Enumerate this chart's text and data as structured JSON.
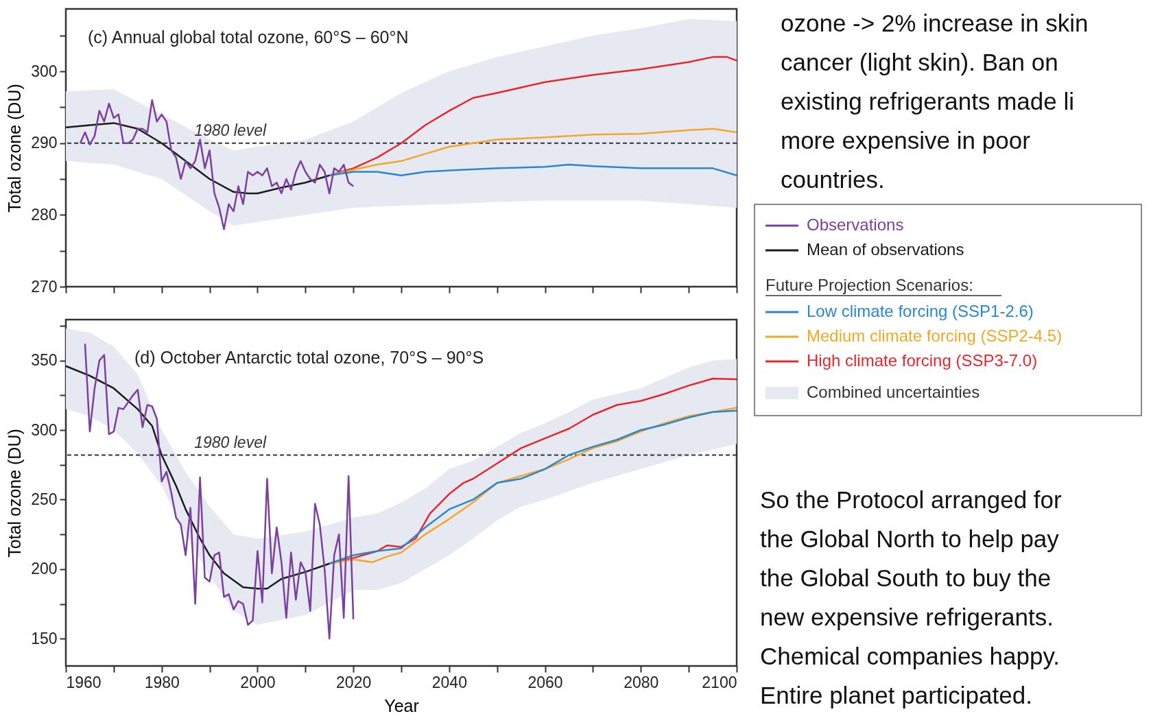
{
  "chart_data": [
    {
      "type": "line",
      "title": "(c) Annual global total ozone, 60°S – 60°N",
      "ylabel": "Total ozone (DU)",
      "xlim": [
        1960,
        2100
      ],
      "ylim": [
        270,
        308.7
      ],
      "xticks": [
        {
          "value": 1960,
          "label": null
        },
        {
          "value": 1970,
          "label": null
        },
        {
          "value": 1980,
          "label": null
        },
        {
          "value": 1990,
          "label": null
        },
        {
          "value": 2000,
          "label": null
        },
        {
          "value": 2010,
          "label": null
        },
        {
          "value": 2020,
          "label": null
        },
        {
          "value": 2030,
          "label": null
        },
        {
          "value": 2040,
          "label": null
        },
        {
          "value": 2050,
          "label": null
        },
        {
          "value": 2060,
          "label": null
        },
        {
          "value": 2070,
          "label": null
        },
        {
          "value": 2080,
          "label": null
        },
        {
          "value": 2090,
          "label": null
        },
        {
          "value": 2100,
          "label": null
        }
      ],
      "yticks": [
        270,
        {
          "value": 275,
          "label": null
        },
        280,
        {
          "value": 285,
          "label": null
        },
        290,
        {
          "value": 295,
          "label": null
        },
        300,
        {
          "value": 305,
          "label": null
        }
      ],
      "tick_labels": "y",
      "legend": "right",
      "legend_title": "Future Projection Scenarios:",
      "grid": false,
      "ref_lines": [
        {
          "axis": "y",
          "value": 290,
          "label": "1980 level",
          "line_style": "dashed",
          "color": "#333333"
        }
      ],
      "series": [
        {
          "name": "Observations",
          "type": "line",
          "color": "#7b3fa0",
          "x": [
            1963,
            1964,
            1965,
            1966,
            1967,
            1968,
            1969,
            1970,
            1971,
            1972,
            1973,
            1974,
            1975,
            1976,
            1977,
            1978,
            1979,
            1980,
            1981,
            1982,
            1983,
            1984,
            1985,
            1986,
            1987,
            1988,
            1989,
            1990,
            1991,
            1992,
            1993,
            1994,
            1995,
            1996,
            1997,
            1998,
            1999,
            2000,
            2001,
            2002,
            2003,
            2004,
            2005,
            2006,
            2007,
            2008,
            2009,
            2010,
            2011,
            2012,
            2013,
            2014,
            2015,
            2016,
            2017,
            2018,
            2019,
            2020
          ],
          "values": [
            290,
            291.5,
            289.8,
            291,
            294.5,
            293,
            295.5,
            293.5,
            294,
            290,
            290,
            290.5,
            292,
            292,
            291.5,
            296,
            293,
            294,
            293,
            289,
            288,
            285,
            287.5,
            286.5,
            287.5,
            290.5,
            286.5,
            289,
            283,
            281,
            278,
            281.5,
            280.5,
            284,
            281.5,
            286,
            285.5,
            286,
            285.5,
            286.5,
            284,
            284.5,
            283,
            285,
            283.5,
            286,
            287.5,
            286,
            285,
            284.5,
            287,
            286,
            283,
            286.5,
            286,
            287,
            284.5,
            284
          ]
        },
        {
          "name": "Mean of observations",
          "type": "line",
          "color": "#1a1a1a",
          "x": [
            1960,
            1965,
            1970,
            1975,
            1980,
            1985,
            1990,
            1995,
            1998,
            2000,
            2005,
            2010,
            2015
          ],
          "values": [
            292.2,
            292.5,
            292.8,
            292,
            290,
            287.5,
            285,
            283.2,
            283,
            283,
            283.8,
            284.5,
            285.5
          ]
        },
        {
          "name": "Low climate forcing (SSP1-2.6)",
          "type": "line",
          "color": "#2a86d1",
          "x": [
            2015,
            2020,
            2025,
            2030,
            2035,
            2040,
            2050,
            2060,
            2065,
            2070,
            2080,
            2090,
            2095,
            2100
          ],
          "values": [
            285.5,
            286,
            286,
            285.5,
            286,
            286.2,
            286.5,
            286.7,
            287,
            286.8,
            286.5,
            286.5,
            286.5,
            285.5
          ]
        },
        {
          "name": "Medium climate forcing (SSP2-4.5)",
          "type": "line",
          "color": "#f5a623",
          "x": [
            2015,
            2020,
            2025,
            2030,
            2035,
            2040,
            2045,
            2050,
            2060,
            2070,
            2080,
            2090,
            2095,
            2100
          ],
          "values": [
            285.5,
            286.3,
            287,
            287.5,
            288.5,
            289.5,
            290,
            290.5,
            290.8,
            291.2,
            291.3,
            291.8,
            292,
            291.5
          ]
        },
        {
          "name": "High climate forcing (SSP3-7.0)",
          "type": "line",
          "color": "#e8262b",
          "x": [
            2015,
            2020,
            2025,
            2030,
            2035,
            2040,
            2045,
            2050,
            2060,
            2070,
            2080,
            2090,
            2095,
            2098,
            2100
          ],
          "values": [
            285.5,
            286.5,
            288,
            290,
            292.5,
            294.5,
            296.3,
            297,
            298.5,
            299.5,
            300.3,
            301.3,
            302,
            302,
            301.5
          ]
        },
        {
          "name": "Combined uncertainties",
          "type": "area",
          "color": "#e6e9f1",
          "x": [
            1960,
            1970,
            1980,
            1990,
            1995,
            2000,
            2010,
            2020,
            2030,
            2040,
            2050,
            2060,
            2070,
            2080,
            2090,
            2100
          ],
          "values": [
            null,
            null,
            null,
            null,
            null,
            null,
            null,
            null,
            null,
            null,
            null,
            null,
            null,
            null,
            null,
            null
          ],
          "lower": [
            287.5,
            287,
            285,
            280.5,
            278.5,
            279,
            280,
            281,
            281.3,
            281.5,
            281.8,
            282,
            282,
            282,
            281.5,
            281
          ],
          "upper": [
            297.2,
            297.5,
            294,
            290.5,
            289,
            289.5,
            290.5,
            293,
            297,
            300,
            302,
            303.5,
            305,
            306,
            307.3,
            307
          ]
        }
      ]
    },
    {
      "type": "line",
      "title": "(d) October Antarctic total ozone, 70°S – 90°S",
      "xlabel": "Year",
      "ylabel": "Total ozone (DU)",
      "xlim": [
        1960,
        2100
      ],
      "ylim": [
        130.4,
        379.4
      ],
      "xticks": [
        1960,
        {
          "value": 1970,
          "label": null
        },
        1980,
        {
          "value": 1990,
          "label": null
        },
        2000,
        {
          "value": 2010,
          "label": null
        },
        2020,
        {
          "value": 2030,
          "label": null
        },
        2040,
        {
          "value": 2050,
          "label": null
        },
        2060,
        {
          "value": 2070,
          "label": null
        },
        2080,
        {
          "value": 2090,
          "label": null
        },
        2100
      ],
      "yticks": [
        150,
        {
          "value": 175,
          "label": null
        },
        200,
        {
          "value": 225,
          "label": null
        },
        250,
        {
          "value": 275,
          "label": null
        },
        300,
        {
          "value": 325,
          "label": null
        },
        350,
        {
          "value": 375,
          "label": null
        }
      ],
      "grid": false,
      "ref_lines": [
        {
          "axis": "y",
          "value": 282,
          "label": "1980 level",
          "line_style": "dashed",
          "color": "#333333"
        }
      ],
      "series": [
        {
          "type": "line",
          "color": "#7b3fa0",
          "x": [
            1964,
            1965,
            1966,
            1967,
            1968,
            1969,
            1970,
            1971,
            1972,
            1973,
            1974,
            1975,
            1976,
            1977,
            1978,
            1979,
            1980,
            1981,
            1982,
            1983,
            1984,
            1985,
            1986,
            1987,
            1988,
            1989,
            1990,
            1991,
            1992,
            1993,
            1994,
            1995,
            1996,
            1997,
            1998,
            1999,
            2000,
            2001,
            2002,
            2003,
            2004,
            2005,
            2006,
            2007,
            2008,
            2009,
            2010,
            2011,
            2012,
            2013,
            2014,
            2015,
            2016,
            2017,
            2018,
            2019,
            2020
          ],
          "values": [
            362,
            299,
            330,
            350,
            354,
            297,
            299,
            316,
            315,
            320,
            325,
            329,
            302,
            318,
            317,
            308,
            263,
            270,
            255,
            237,
            232,
            210,
            244,
            175,
            266,
            194,
            191,
            210,
            212,
            180,
            182,
            171,
            177,
            175,
            160,
            163,
            213,
            176,
            265,
            197,
            230,
            205,
            165,
            212,
            178,
            205,
            198,
            170,
            247,
            232,
            200,
            150,
            210,
            225,
            165,
            267,
            164
          ]
        },
        {
          "type": "line",
          "color": "#1a1a1a",
          "x": [
            1960,
            1965,
            1970,
            1975,
            1978,
            1980,
            1983,
            1985,
            1988,
            1990,
            1993,
            1997,
            2000,
            2002,
            2005,
            2010,
            2015
          ],
          "values": [
            346,
            339,
            330,
            315,
            303,
            282,
            260,
            243,
            222,
            210,
            197,
            187,
            186,
            186,
            193,
            198,
            204
          ]
        },
        {
          "type": "line",
          "color": "#2a86d1",
          "x": [
            2015,
            2020,
            2025,
            2030,
            2035,
            2040,
            2045,
            2050,
            2055,
            2060,
            2065,
            2070,
            2075,
            2080,
            2085,
            2090,
            2095,
            2100
          ],
          "values": [
            204,
            210,
            213,
            215,
            230,
            243,
            250,
            262,
            265,
            272,
            282,
            288,
            293,
            300,
            304,
            309,
            313,
            314
          ]
        },
        {
          "type": "line",
          "color": "#f5a623",
          "x": [
            2015,
            2020,
            2024,
            2027,
            2030,
            2035,
            2040,
            2045,
            2050,
            2055,
            2060,
            2065,
            2070,
            2075,
            2080,
            2085,
            2090,
            2095,
            2100
          ],
          "values": [
            204,
            207,
            205,
            209,
            212,
            225,
            236,
            248,
            262,
            267,
            272,
            279,
            287,
            292,
            299,
            305,
            310,
            313,
            316
          ]
        },
        {
          "type": "line",
          "color": "#e8262b",
          "x": [
            2015,
            2020,
            2025,
            2027,
            2030,
            2033,
            2036,
            2040,
            2043,
            2045,
            2050,
            2055,
            2060,
            2065,
            2070,
            2075,
            2080,
            2085,
            2090,
            2095,
            2100
          ],
          "values": [
            204,
            208,
            213,
            217,
            216,
            222,
            240,
            254,
            262,
            265,
            276,
            287,
            294,
            301,
            311,
            318,
            321,
            326,
            332,
            337,
            336.5
          ]
        },
        {
          "type": "area",
          "color": "#e6e9f1",
          "x": [
            1960,
            1965,
            1970,
            1975,
            1980,
            1985,
            1990,
            1995,
            2000,
            2010,
            2020,
            2025,
            2030,
            2035,
            2040,
            2045,
            2050,
            2055,
            2060,
            2065,
            2070,
            2080,
            2090,
            2095,
            2100
          ],
          "values": [
            null,
            null,
            null,
            null,
            null,
            null,
            null,
            null,
            null,
            null,
            null,
            null,
            null,
            null,
            null,
            null,
            null,
            null,
            null,
            null,
            null,
            null,
            null,
            null,
            null
          ],
          "lower": [
            315,
            310,
            300,
            283,
            260,
            225,
            195,
            170,
            160,
            167,
            185,
            185,
            190,
            200,
            210,
            222,
            235,
            245,
            250,
            256,
            262,
            272,
            282,
            286,
            290
          ],
          "upper": [
            373,
            370,
            360,
            340,
            300,
            270,
            245,
            225,
            222,
            227,
            237,
            240,
            248,
            258,
            272,
            278,
            288,
            298,
            305,
            313,
            322,
            330,
            345,
            350,
            351
          ]
        }
      ]
    },
    {
      "type": "other",
      "annotations": [
        "ozone -> 2% increase in skin\ncancer (light skin).  Ban on\nexisting refrigerants made li\nmore expensive in poor\ncountries.",
        "So the Protocol arranged for\nthe Global North to help pay\nthe Global South to buy the\nnew expensive refrigerants.\nChemical companies happy.\nEntire planet participated."
      ]
    }
  ]
}
